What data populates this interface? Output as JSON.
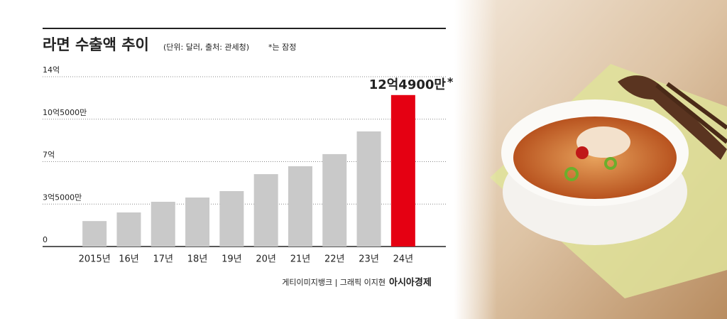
{
  "chart_data": {
    "type": "bar",
    "title": "라면 수출액 추이",
    "subtitle": "(단위: 달러, 출처: 관세청)",
    "note": "*는 잠정",
    "categories": [
      "2015년",
      "16년",
      "17년",
      "18년",
      "19년",
      "20년",
      "21년",
      "22년",
      "23년",
      "24년"
    ],
    "values": [
      210000000,
      281000000,
      369000000,
      404000000,
      457000000,
      597000000,
      662000000,
      762000000,
      949000000,
      1249000000
    ],
    "value_labels": [
      null,
      null,
      null,
      null,
      null,
      null,
      null,
      null,
      null,
      "12억4900만"
    ],
    "label_mark": "*",
    "colors": [
      "#c9c9c9",
      "#c9c9c9",
      "#c9c9c9",
      "#c9c9c9",
      "#c9c9c9",
      "#c9c9c9",
      "#c9c9c9",
      "#c9c9c9",
      "#c9c9c9",
      "#e50012"
    ],
    "ylim": [
      0,
      1400000000
    ],
    "yticks": [
      {
        "value": 0,
        "label": "0"
      },
      {
        "value": 350000000,
        "label": "3억5000만"
      },
      {
        "value": 700000000,
        "label": "7억"
      },
      {
        "value": 1050000000,
        "label": "10억5000만"
      },
      {
        "value": 1400000000,
        "label": "14억"
      }
    ],
    "grid": true,
    "source": "게티이미지뱅크 | 그래픽 이지현",
    "brand": "아시아경제"
  }
}
